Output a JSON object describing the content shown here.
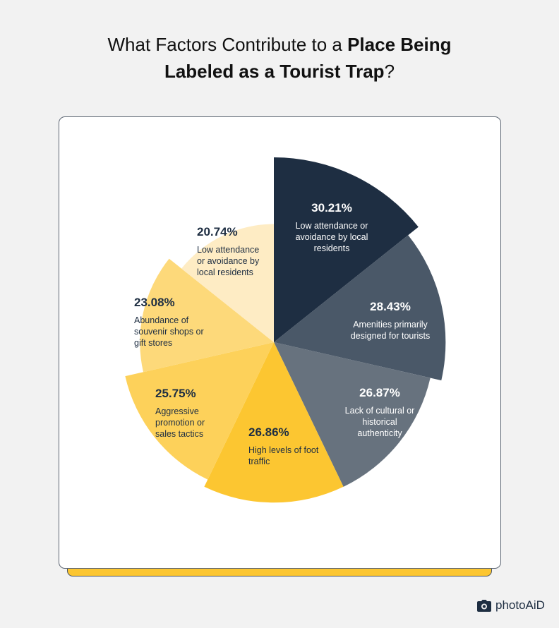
{
  "title": {
    "regular": "What Factors Contribute to a ",
    "bold_line1": "Place Being",
    "bold_line2": "Labeled as a Tourist Trap",
    "suffix": "?"
  },
  "brand": {
    "name": "photoAiD",
    "icon": "camera-icon"
  },
  "colors": {
    "background": "#f2f2f2",
    "card": "#ffffff",
    "card_border": "#5d6673",
    "accent_bar": "#fcc631",
    "slices": [
      "#1e2e42",
      "#4a5868",
      "#67727e",
      "#fcc631",
      "#fdd15a",
      "#fdd97a",
      "#feecc4"
    ]
  },
  "chart_data": {
    "type": "pie",
    "variant": "variable-radius pie (equal angles, radius encodes value)",
    "title": "What Factors Contribute to a Place Being Labeled as a Tourist Trap?",
    "categories": [
      "Low attendance or avoidance by local residents",
      "Amenities primarily designed for tourists",
      "Lack of cultural or historical authenticity",
      "High levels of foot traffic",
      "Aggressive promotion or sales tactics",
      "Abundance of souvenir shops or gift stores",
      "Low attendance or avoidance by local residents"
    ],
    "values": [
      30.21,
      28.43,
      26.87,
      26.86,
      25.75,
      23.08,
      20.74
    ],
    "unit": "%",
    "legend": "none (inline labels)"
  },
  "slices": [
    {
      "pct": "30.21%",
      "label": "Low attendance or avoidance by local residents"
    },
    {
      "pct": "28.43%",
      "label": "Amenities primarily designed for tourists"
    },
    {
      "pct": "26.87%",
      "label": "Lack of cultural or historical authenticity"
    },
    {
      "pct": "26.86%",
      "label": "High levels of foot traffic"
    },
    {
      "pct": "25.75%",
      "label": "Aggressive promotion or sales tactics"
    },
    {
      "pct": "23.08%",
      "label": "Abundance of souvenir shops or gift stores"
    },
    {
      "pct": "20.74%",
      "label": "Low attendance or avoidance by local residents"
    }
  ]
}
